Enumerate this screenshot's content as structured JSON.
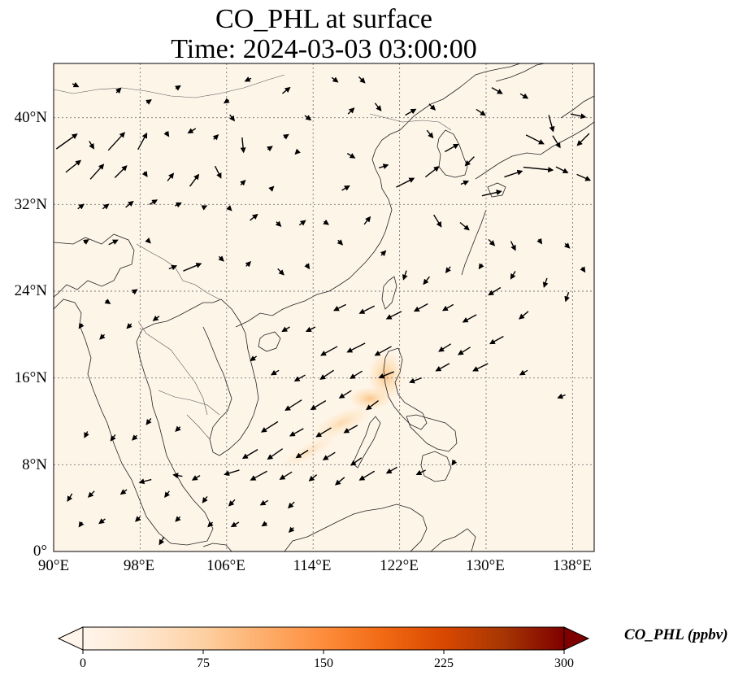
{
  "title": {
    "line1": "CO_PHL at surface",
    "line2": "Time: 2024-03-03 03:00:00"
  },
  "map": {
    "extent": {
      "lon_min": 90,
      "lon_max": 140,
      "lat_min": 0,
      "lat_max": 45
    },
    "lat_ticks": [
      {
        "value": 40,
        "label": "40°N"
      },
      {
        "value": 32,
        "label": "32°N"
      },
      {
        "value": 24,
        "label": "24°N"
      },
      {
        "value": 16,
        "label": "16°N"
      },
      {
        "value": 8,
        "label": "8°N"
      },
      {
        "value": 0,
        "label": "0°"
      }
    ],
    "lon_ticks": [
      {
        "value": 90,
        "label": "90°E"
      },
      {
        "value": 98,
        "label": "98°E"
      },
      {
        "value": 106,
        "label": "106°E"
      },
      {
        "value": 114,
        "label": "114°E"
      },
      {
        "value": 122,
        "label": "122°E"
      },
      {
        "value": 130,
        "label": "130°E"
      },
      {
        "value": 138,
        "label": "138°E"
      }
    ],
    "background_color": "#fef5e9",
    "gridline_style": "dotted",
    "plume_color": "#fdd9a8",
    "wind_vectors": [
      {
        "lon": 91.2,
        "lat": 37.8,
        "u": 1.4,
        "v": 1.0
      },
      {
        "lon": 93.5,
        "lat": 37.5,
        "u": 0.3,
        "v": -0.5
      },
      {
        "lon": 95.8,
        "lat": 37.8,
        "u": 1.1,
        "v": 1.2
      },
      {
        "lon": 98.2,
        "lat": 37.8,
        "u": 0.6,
        "v": 1.1
      },
      {
        "lon": 100.5,
        "lat": 38.5,
        "u": 0.2,
        "v": -0.3
      },
      {
        "lon": 102.8,
        "lat": 38.8,
        "u": -0.5,
        "v": -0.3
      },
      {
        "lon": 105,
        "lat": 38.2,
        "u": 0.3,
        "v": 0.3
      },
      {
        "lon": 107.5,
        "lat": 37.5,
        "u": 0.1,
        "v": -1.0
      },
      {
        "lon": 110,
        "lat": 37.2,
        "u": 0.3,
        "v": 0.2
      },
      {
        "lon": 112.5,
        "lat": 36.8,
        "u": -0.2,
        "v": -0.2
      },
      {
        "lon": 91.8,
        "lat": 35.5,
        "u": 1.0,
        "v": 0.8
      },
      {
        "lon": 94,
        "lat": 35,
        "u": 0.9,
        "v": 1.0
      },
      {
        "lon": 96.2,
        "lat": 35,
        "u": 0.8,
        "v": 0.8
      },
      {
        "lon": 98.5,
        "lat": 34.8,
        "u": 0.2,
        "v": -0.3
      },
      {
        "lon": 100.8,
        "lat": 34.5,
        "u": 0.4,
        "v": 0.5
      },
      {
        "lon": 103,
        "lat": 34.2,
        "u": 0.6,
        "v": 0.8
      },
      {
        "lon": 105.2,
        "lat": 35,
        "u": 0.4,
        "v": -0.8
      },
      {
        "lon": 107.5,
        "lat": 34,
        "u": 0.3,
        "v": 0.3
      },
      {
        "lon": 110.2,
        "lat": 33.5,
        "u": 0.2,
        "v": 0.2
      },
      {
        "lon": 92.5,
        "lat": 31.8,
        "u": 0.4,
        "v": 0.3
      },
      {
        "lon": 94.8,
        "lat": 31.8,
        "u": 0.4,
        "v": 0.3
      },
      {
        "lon": 97,
        "lat": 32,
        "u": 0.5,
        "v": 0.4
      },
      {
        "lon": 99.2,
        "lat": 32.2,
        "u": 0.5,
        "v": 0.3
      },
      {
        "lon": 101.5,
        "lat": 32,
        "u": 0.4,
        "v": 0.2
      },
      {
        "lon": 104,
        "lat": 31.8,
        "u": 0.2,
        "v": 0.1
      },
      {
        "lon": 106.3,
        "lat": 31.6,
        "u": 0.2,
        "v": -0.2
      },
      {
        "lon": 108.5,
        "lat": 30.8,
        "u": 0.5,
        "v": 0.4
      },
      {
        "lon": 110.8,
        "lat": 30.2,
        "u": 0.3,
        "v": -0.3
      },
      {
        "lon": 113,
        "lat": 30.3,
        "u": 0.4,
        "v": 0.3
      },
      {
        "lon": 115.2,
        "lat": 30.3,
        "u": 0.3,
        "v": -0.2
      },
      {
        "lon": 93,
        "lat": 28.6,
        "u": 0.3,
        "v": 0.2
      },
      {
        "lon": 95.5,
        "lat": 28.5,
        "u": 0.6,
        "v": 0.3
      },
      {
        "lon": 98.8,
        "lat": 28.6,
        "u": 0.2,
        "v": -0.2
      },
      {
        "lon": 102.8,
        "lat": 26.2,
        "u": 1.2,
        "v": 0.5
      },
      {
        "lon": 101,
        "lat": 26.2,
        "u": 0.5,
        "v": 0.2
      },
      {
        "lon": 105.5,
        "lat": 27,
        "u": 0.3,
        "v": -0.3
      },
      {
        "lon": 108,
        "lat": 26.5,
        "u": 0.3,
        "v": 0.3
      },
      {
        "lon": 111,
        "lat": 25.8,
        "u": 0.4,
        "v": -0.4
      },
      {
        "lon": 113.5,
        "lat": 26.3,
        "u": 0.2,
        "v": -0.3
      },
      {
        "lon": 116.5,
        "lat": 28.5,
        "u": 0.3,
        "v": -0.3
      },
      {
        "lon": 119,
        "lat": 30.5,
        "u": 0.4,
        "v": 0.5
      },
      {
        "lon": 120.5,
        "lat": 27.5,
        "u": 0.3,
        "v": 0.3
      },
      {
        "lon": 125.5,
        "lat": 30.5,
        "u": 0.5,
        "v": -0.8
      },
      {
        "lon": 128,
        "lat": 30,
        "u": 0.6,
        "v": -0.5
      },
      {
        "lon": 130.5,
        "lat": 28.5,
        "u": 0.4,
        "v": -0.4
      },
      {
        "lon": 132.5,
        "lat": 28.2,
        "u": 0.3,
        "v": -0.6
      },
      {
        "lon": 135,
        "lat": 28.6,
        "u": 0.2,
        "v": -0.3
      },
      {
        "lon": 137.5,
        "lat": 28.2,
        "u": 0.3,
        "v": -0.3
      },
      {
        "lon": 139,
        "lat": 26,
        "u": 0.2,
        "v": -0.3
      },
      {
        "lon": 122.5,
        "lat": 25.5,
        "u": -0.2,
        "v": -0.6
      },
      {
        "lon": 124.5,
        "lat": 25,
        "u": -0.4,
        "v": -0.5
      },
      {
        "lon": 126.5,
        "lat": 26,
        "u": -0.3,
        "v": -0.4
      },
      {
        "lon": 129.5,
        "lat": 26.3,
        "u": -0.2,
        "v": -0.3
      },
      {
        "lon": 132.5,
        "lat": 25.5,
        "u": -0.3,
        "v": -0.5
      },
      {
        "lon": 135.5,
        "lat": 24.8,
        "u": -0.2,
        "v": -0.6
      },
      {
        "lon": 137.5,
        "lat": 23.5,
        "u": -0.2,
        "v": -0.6
      },
      {
        "lon": 130.8,
        "lat": 24,
        "u": -0.8,
        "v": -0.5
      },
      {
        "lon": 133.5,
        "lat": 21.8,
        "u": -0.6,
        "v": -0.5
      },
      {
        "lon": 128.5,
        "lat": 21.5,
        "u": -0.9,
        "v": -0.5
      },
      {
        "lon": 126.5,
        "lat": 22.5,
        "u": -0.7,
        "v": -0.4
      },
      {
        "lon": 124,
        "lat": 22.5,
        "u": -0.9,
        "v": -0.5
      },
      {
        "lon": 121.5,
        "lat": 21.8,
        "u": -1.0,
        "v": -0.5
      },
      {
        "lon": 119,
        "lat": 22.3,
        "u": -1.0,
        "v": -0.5
      },
      {
        "lon": 116.5,
        "lat": 22.5,
        "u": -0.8,
        "v": -0.4
      },
      {
        "lon": 113.8,
        "lat": 20.5,
        "u": -0.6,
        "v": -0.3
      },
      {
        "lon": 111.5,
        "lat": 20.5,
        "u": -0.5,
        "v": -0.3
      },
      {
        "lon": 115.5,
        "lat": 18.5,
        "u": -1.1,
        "v": -0.6
      },
      {
        "lon": 118,
        "lat": 18.8,
        "u": -1.2,
        "v": -0.6
      },
      {
        "lon": 120.5,
        "lat": 18.5,
        "u": -1.1,
        "v": -0.6
      },
      {
        "lon": 126.2,
        "lat": 18.8,
        "u": -0.8,
        "v": -0.5
      },
      {
        "lon": 128,
        "lat": 18.5,
        "u": -0.8,
        "v": -0.5
      },
      {
        "lon": 131,
        "lat": 19.5,
        "u": -0.9,
        "v": -0.5
      },
      {
        "lon": 129.5,
        "lat": 17,
        "u": -1.0,
        "v": -0.5
      },
      {
        "lon": 126,
        "lat": 17,
        "u": -0.9,
        "v": -0.5
      },
      {
        "lon": 123.5,
        "lat": 15.8,
        "u": -0.8,
        "v": -0.3
      },
      {
        "lon": 120.8,
        "lat": 16.3,
        "u": -1.0,
        "v": -0.4
      },
      {
        "lon": 118,
        "lat": 16.3,
        "u": -0.8,
        "v": -0.5
      },
      {
        "lon": 115.3,
        "lat": 16.3,
        "u": -0.9,
        "v": -0.6
      },
      {
        "lon": 112.8,
        "lat": 16,
        "u": -0.7,
        "v": -0.4
      },
      {
        "lon": 110.5,
        "lat": 16.5,
        "u": -0.5,
        "v": -0.3
      },
      {
        "lon": 108.5,
        "lat": 17.8,
        "u": -0.4,
        "v": -0.3
      },
      {
        "lon": 133.5,
        "lat": 16.5,
        "u": -0.5,
        "v": -0.3
      },
      {
        "lon": 137,
        "lat": 14.3,
        "u": -0.5,
        "v": -0.2
      },
      {
        "lon": 112.2,
        "lat": 13.5,
        "u": -1.1,
        "v": -0.7
      },
      {
        "lon": 114.5,
        "lat": 13.5,
        "u": -1.0,
        "v": -0.6
      },
      {
        "lon": 117,
        "lat": 14.5,
        "u": -0.8,
        "v": -0.5
      },
      {
        "lon": 119.5,
        "lat": 13.5,
        "u": -0.8,
        "v": -0.6
      },
      {
        "lon": 110,
        "lat": 11.5,
        "u": -1.1,
        "v": -0.7
      },
      {
        "lon": 112.5,
        "lat": 11,
        "u": -0.9,
        "v": -0.5
      },
      {
        "lon": 115,
        "lat": 11,
        "u": -1.0,
        "v": -0.6
      },
      {
        "lon": 117.5,
        "lat": 11.3,
        "u": -0.9,
        "v": -0.5
      },
      {
        "lon": 108.2,
        "lat": 9,
        "u": -1.0,
        "v": -0.6
      },
      {
        "lon": 110.5,
        "lat": 9,
        "u": -1.0,
        "v": -0.7
      },
      {
        "lon": 113,
        "lat": 9,
        "u": -0.8,
        "v": -0.5
      },
      {
        "lon": 115.5,
        "lat": 8.8,
        "u": -0.8,
        "v": -0.5
      },
      {
        "lon": 118,
        "lat": 8.3,
        "u": -0.7,
        "v": -0.5
      },
      {
        "lon": 106.5,
        "lat": 7.3,
        "u": -1.0,
        "v": -0.3
      },
      {
        "lon": 109,
        "lat": 7,
        "u": -1.1,
        "v": -0.6
      },
      {
        "lon": 111.5,
        "lat": 7,
        "u": -0.8,
        "v": -0.5
      },
      {
        "lon": 114,
        "lat": 6.8,
        "u": -0.5,
        "v": -0.4
      },
      {
        "lon": 116.5,
        "lat": 6.5,
        "u": -0.6,
        "v": -0.5
      },
      {
        "lon": 119,
        "lat": 7,
        "u": -1.0,
        "v": -0.6
      },
      {
        "lon": 121.3,
        "lat": 7.5,
        "u": -0.7,
        "v": -0.4
      },
      {
        "lon": 124,
        "lat": 7.3,
        "u": -0.6,
        "v": -0.3
      },
      {
        "lon": 127,
        "lat": 8.2,
        "u": -0.2,
        "v": -0.3
      },
      {
        "lon": 98.5,
        "lat": 6.5,
        "u": -0.8,
        "v": -0.2
      },
      {
        "lon": 101.5,
        "lat": 7,
        "u": -0.6,
        "v": 0.1
      },
      {
        "lon": 103.2,
        "lat": 6.8,
        "u": -0.5,
        "v": -0.3
      },
      {
        "lon": 91.5,
        "lat": 5,
        "u": -0.3,
        "v": -0.5
      },
      {
        "lon": 93.5,
        "lat": 5.3,
        "u": -0.4,
        "v": -0.4
      },
      {
        "lon": 96.5,
        "lat": 5.5,
        "u": -0.4,
        "v": -0.3
      },
      {
        "lon": 100.5,
        "lat": 5.3,
        "u": -0.3,
        "v": -0.4
      },
      {
        "lon": 104,
        "lat": 4.8,
        "u": -0.3,
        "v": -0.4
      },
      {
        "lon": 106.5,
        "lat": 4.5,
        "u": -0.4,
        "v": -0.4
      },
      {
        "lon": 109.5,
        "lat": 4.5,
        "u": -0.5,
        "v": -0.3
      },
      {
        "lon": 112,
        "lat": 4.3,
        "u": -0.4,
        "v": -0.4
      },
      {
        "lon": 92.5,
        "lat": 2.5,
        "u": -0.2,
        "v": -0.3
      },
      {
        "lon": 94.5,
        "lat": 2.8,
        "u": -0.4,
        "v": -0.3
      },
      {
        "lon": 97.8,
        "lat": 3,
        "u": -0.3,
        "v": -0.3
      },
      {
        "lon": 101.5,
        "lat": 3,
        "u": -0.3,
        "v": -0.3
      },
      {
        "lon": 104.5,
        "lat": 2.5,
        "u": -0.3,
        "v": -0.3
      },
      {
        "lon": 106.8,
        "lat": 2.5,
        "u": -0.5,
        "v": -0.3
      },
      {
        "lon": 109.5,
        "lat": 2.5,
        "u": -0.3,
        "v": -0.2
      },
      {
        "lon": 112,
        "lat": 2,
        "u": -0.3,
        "v": -0.3
      },
      {
        "lon": 100,
        "lat": 1,
        "u": -0.3,
        "v": -0.5
      },
      {
        "lon": 93,
        "lat": 10.8,
        "u": -0.2,
        "v": -0.4
      },
      {
        "lon": 95.5,
        "lat": 10.5,
        "u": -0.3,
        "v": -0.4
      },
      {
        "lon": 97.5,
        "lat": 10.5,
        "u": -0.3,
        "v": -0.3
      },
      {
        "lon": 98.8,
        "lat": 12,
        "u": -0.3,
        "v": -0.4
      },
      {
        "lon": 101.5,
        "lat": 11.3,
        "u": -0.3,
        "v": -0.3
      },
      {
        "lon": 92.5,
        "lat": 20.8,
        "u": -0.2,
        "v": -0.3
      },
      {
        "lon": 94.5,
        "lat": 19.8,
        "u": -0.3,
        "v": -0.3
      },
      {
        "lon": 97,
        "lat": 20.8,
        "u": -0.3,
        "v": -0.3
      },
      {
        "lon": 99.5,
        "lat": 21.5,
        "u": -0.4,
        "v": -0.3
      },
      {
        "lon": 95,
        "lat": 23,
        "u": 0.3,
        "v": -0.2
      },
      {
        "lon": 97.5,
        "lat": 24,
        "u": 0.3,
        "v": 0.2
      },
      {
        "lon": 124.8,
        "lat": 38.5,
        "u": 0.4,
        "v": -0.5
      },
      {
        "lon": 126.8,
        "lat": 37.2,
        "u": 0.9,
        "v": 0.5
      },
      {
        "lon": 128.5,
        "lat": 36,
        "u": -0.6,
        "v": -0.6
      },
      {
        "lon": 130.5,
        "lat": 33,
        "u": 1.3,
        "v": 0.3
      },
      {
        "lon": 132.5,
        "lat": 34.8,
        "u": 1.2,
        "v": 0.4
      },
      {
        "lon": 134.8,
        "lat": 35.3,
        "u": 2.0,
        "v": -0.2
      },
      {
        "lon": 137,
        "lat": 35.2,
        "u": 0.8,
        "v": -0.4
      },
      {
        "lon": 139,
        "lat": 34.5,
        "u": 0.9,
        "v": -0.4
      },
      {
        "lon": 134.5,
        "lat": 38,
        "u": 1.2,
        "v": -0.6
      },
      {
        "lon": 136.5,
        "lat": 37.8,
        "u": 0.5,
        "v": -0.8
      },
      {
        "lon": 139,
        "lat": 38,
        "u": -0.8,
        "v": -0.8
      },
      {
        "lon": 136,
        "lat": 39.5,
        "u": 0.3,
        "v": -1.1
      },
      {
        "lon": 138.5,
        "lat": 40.2,
        "u": 1.0,
        "v": -0.2
      },
      {
        "lon": 131,
        "lat": 42.5,
        "u": 0.7,
        "v": -0.4
      },
      {
        "lon": 133.5,
        "lat": 42,
        "u": 0.5,
        "v": -0.3
      },
      {
        "lon": 129.5,
        "lat": 40.5,
        "u": 0.6,
        "v": -0.4
      },
      {
        "lon": 125,
        "lat": 41,
        "u": 0.4,
        "v": -0.4
      },
      {
        "lon": 123,
        "lat": 40.5,
        "u": 0.7,
        "v": 0.4
      },
      {
        "lon": 120,
        "lat": 41,
        "u": 0.4,
        "v": -0.5
      },
      {
        "lon": 117.5,
        "lat": 40.6,
        "u": 0.4,
        "v": 0.4
      },
      {
        "lon": 113.5,
        "lat": 40,
        "u": 0.4,
        "v": -0.3
      },
      {
        "lon": 111.5,
        "lat": 38.3,
        "u": 0.3,
        "v": 0.2
      },
      {
        "lon": 117.5,
        "lat": 36.5,
        "u": 0.5,
        "v": -0.3
      },
      {
        "lon": 120.5,
        "lat": 35.5,
        "u": 0.6,
        "v": 0.2
      },
      {
        "lon": 122.5,
        "lat": 34,
        "u": 1.2,
        "v": 0.6
      },
      {
        "lon": 125,
        "lat": 35,
        "u": 0.9,
        "v": 0.7
      },
      {
        "lon": 128,
        "lat": 34,
        "u": 0.5,
        "v": 0.2
      },
      {
        "lon": 117,
        "lat": 33.5,
        "u": 0.5,
        "v": 0.3
      },
      {
        "lon": 111.5,
        "lat": 42.5,
        "u": 0.5,
        "v": 0.4
      },
      {
        "lon": 116,
        "lat": 43.5,
        "u": 0.4,
        "v": -0.3
      },
      {
        "lon": 118.5,
        "lat": 43.5,
        "u": 0.4,
        "v": -0.4
      },
      {
        "lon": 106,
        "lat": 41.5,
        "u": -0.3,
        "v": -0.2
      },
      {
        "lon": 108,
        "lat": 43.5,
        "u": -0.4,
        "v": -0.2
      },
      {
        "lon": 101.5,
        "lat": 42.8,
        "u": 0.3,
        "v": 0.2
      },
      {
        "lon": 96,
        "lat": 42.5,
        "u": 0.3,
        "v": 0.3
      },
      {
        "lon": 92,
        "lat": 43,
        "u": 0.4,
        "v": -0.2
      },
      {
        "lon": 98.8,
        "lat": 41.5,
        "u": 0.3,
        "v": 0.2
      },
      {
        "lon": 106.5,
        "lat": 40,
        "u": 0.3,
        "v": -0.4
      }
    ]
  },
  "colorbar": {
    "label": "CO_PHL (ppbv)",
    "tick_labels": [
      "0",
      "75",
      "150",
      "225",
      "300"
    ],
    "min": 0,
    "max": 300,
    "colors": [
      "#fff5eb",
      "#fee6ce",
      "#fdd0a2",
      "#fdae6b",
      "#fd8d3c",
      "#f16913",
      "#d94801",
      "#a63603",
      "#7f0000"
    ]
  }
}
